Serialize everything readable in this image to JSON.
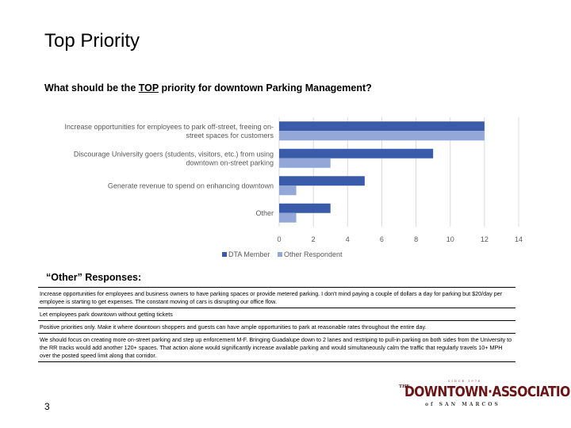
{
  "page": {
    "title": "Top Priority",
    "page_number": "3"
  },
  "question": {
    "prefix": "What should be the ",
    "emphasis": "TOP",
    "suffix": " priority for downtown Parking Management?"
  },
  "chart_data": {
    "type": "bar",
    "orientation": "horizontal",
    "categories": [
      [
        "Increase opportunities for employees to park off-street, freeing on-",
        "street spaces for customers"
      ],
      [
        "Discourage University goers (students, visitors, etc.) from using",
        "downtown on-street parking"
      ],
      [
        "Generate revenue to spend on enhancing downtown"
      ],
      [
        "Other"
      ]
    ],
    "series": [
      {
        "name": "DTA Member",
        "values": [
          12,
          9,
          5,
          3
        ],
        "color": "#3a5ba9"
      },
      {
        "name": "Other Respondent",
        "values": [
          12,
          3,
          1,
          1
        ],
        "color": "#93a8d8"
      }
    ],
    "xlim": [
      0,
      14
    ],
    "xticks": [
      0,
      2,
      4,
      6,
      8,
      10,
      12,
      14
    ],
    "grid": true,
    "legend_position": "bottom"
  },
  "other_responses": {
    "heading": "“Other” Responses:",
    "items": [
      "Increase opportunities for employees and business owners to have parking spaces or provide metered parking.  I don't mind paying a couple of dollars a day for parking but $20/day per employee is starting to get expenses.  The constant moving of cars is disrupting our office flow.",
      "Let employees park downtown without getting tickets",
      "Positive priorities only.   Make it where downtown shoppers and guests can have ample opportunities to park at reasonable rates throughout the entire day.",
      "We should focus on creating more on-street parking and step up enforcement M-F. Bringing Guadalupe down to 2 lanes and restriping to pull-in parking on both sides from the University to the RR tracks would add another 120+ spaces. That action alone would significantly increase available parking and would simultaneously calm the traffic that regularly travels 10+ MPH over the posted speed limit along that corridor."
    ]
  },
  "logo": {
    "since": "SINCE 1978",
    "the": "THE",
    "main": "DOWNTOWN·ASSOCIATION",
    "city": "of SAN MARCOS",
    "color": "#6b1416"
  }
}
